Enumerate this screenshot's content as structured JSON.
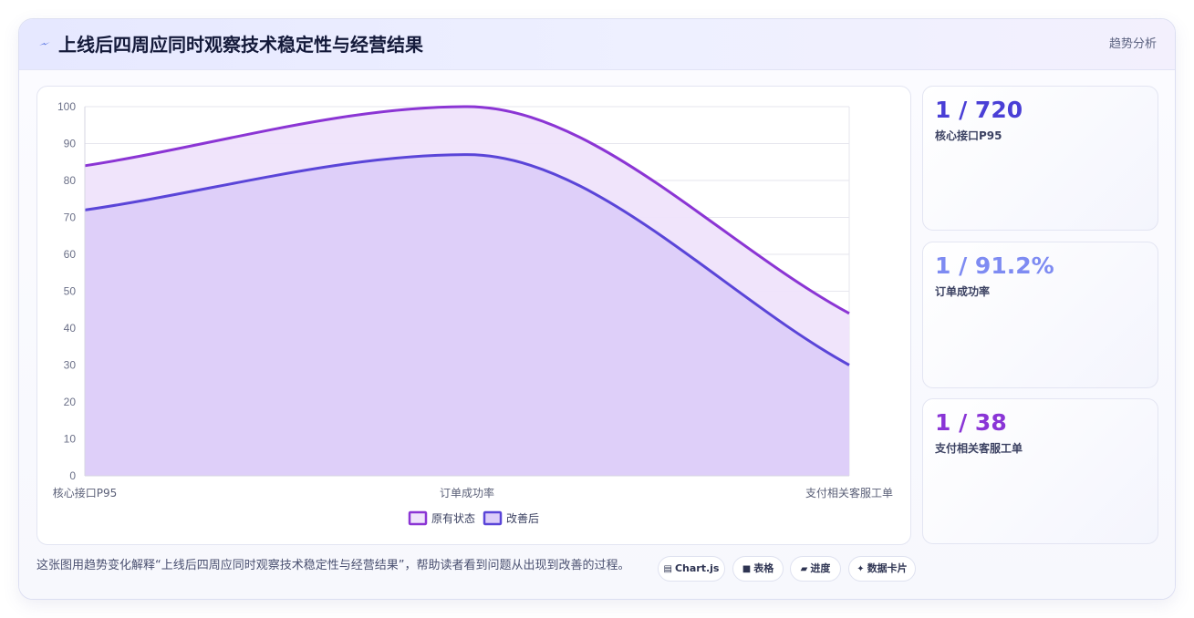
{
  "header": {
    "icon": "bolt-icon",
    "title": "上线后四周应同时观察技术稳定性与经营结果",
    "tag": "趋势分析"
  },
  "stats": [
    {
      "value": "1 / 720",
      "label": "核心接口P95",
      "color": "#4a3fd6"
    },
    {
      "value": "1 / 91.2%",
      "label": "订单成功率",
      "color": "#7e8bf2"
    },
    {
      "value": "1 / 38",
      "label": "支付相关客服工单",
      "color": "#8a35d6"
    }
  ],
  "caption": "这张图用趋势变化解释“上线后四周应同时观察技术稳定性与经营结果”，帮助读者看到问题从出现到改善的过程。",
  "chips": [
    {
      "icon": "chart-icon",
      "glyph": "▤",
      "label": "Chart.js"
    },
    {
      "icon": "table-icon",
      "glyph": "■",
      "label": "表格"
    },
    {
      "icon": "progress-icon",
      "glyph": "▰",
      "label": "进度"
    },
    {
      "icon": "card-icon",
      "glyph": "✦",
      "label": "数据卡片"
    }
  ],
  "chart_data": {
    "type": "area",
    "categories": [
      "核心接口P95",
      "订单成功率",
      "支付相关客服工单"
    ],
    "ylim": [
      0,
      100
    ],
    "yticks": [
      0,
      10,
      20,
      30,
      40,
      50,
      60,
      70,
      80,
      90,
      100
    ],
    "grid": true,
    "legend": "bottom",
    "series": [
      {
        "name": "原有状态",
        "values": [
          84,
          100,
          44
        ],
        "color": "#8b35d4",
        "fill": "#efe3fb"
      },
      {
        "name": "改善后",
        "values": [
          72,
          87,
          30
        ],
        "color": "#5a45d8",
        "fill": "#dccdf9"
      }
    ]
  }
}
